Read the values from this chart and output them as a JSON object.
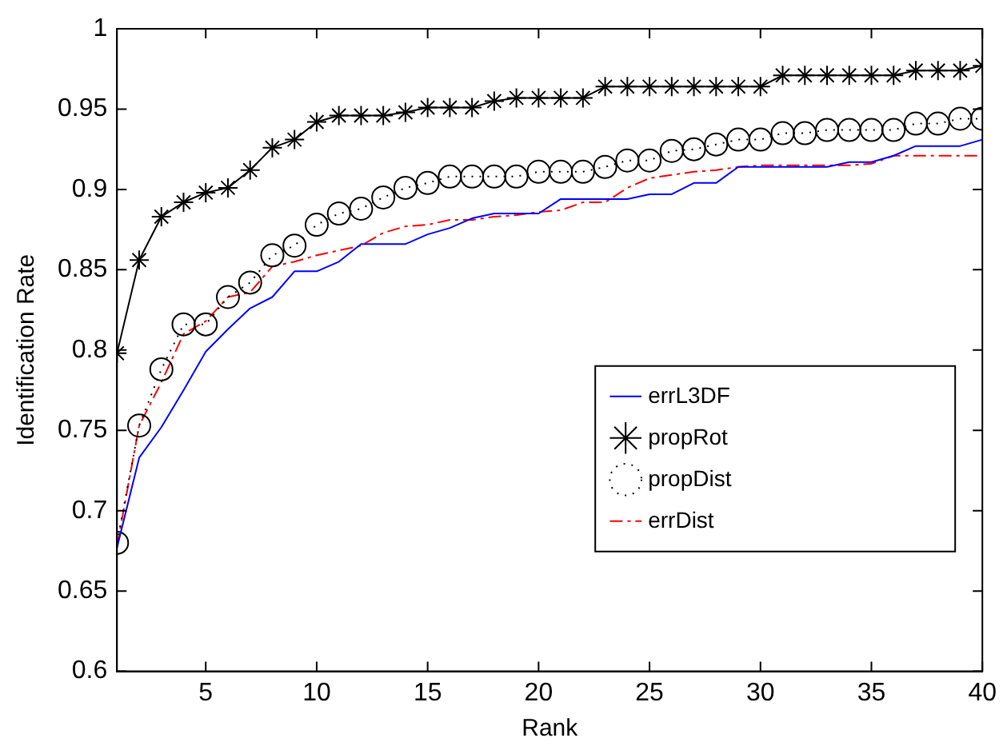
{
  "chart_data": {
    "type": "line",
    "xlabel": "Rank",
    "ylabel": "Identification Rate",
    "x": [
      1,
      2,
      3,
      4,
      5,
      6,
      7,
      8,
      9,
      10,
      11,
      12,
      13,
      14,
      15,
      16,
      17,
      18,
      19,
      20,
      21,
      22,
      23,
      24,
      25,
      26,
      27,
      28,
      29,
      30,
      31,
      32,
      33,
      34,
      35,
      36,
      37,
      38,
      39,
      40
    ],
    "xlim": [
      1,
      40
    ],
    "xticks": [
      5,
      10,
      15,
      20,
      25,
      30,
      35,
      40
    ],
    "ylim": [
      0.6,
      1
    ],
    "yticks": [
      0.6,
      0.65,
      0.7,
      0.75,
      0.8,
      0.85,
      0.9,
      0.95,
      1
    ],
    "grid": false,
    "legend": "right",
    "series": [
      {
        "name": "errL3DF",
        "color": "#0000ff",
        "marker": "none",
        "line_style": "solid",
        "values": [
          0.677,
          0.733,
          0.752,
          0.775,
          0.799,
          0.813,
          0.826,
          0.833,
          0.849,
          0.849,
          0.855,
          0.866,
          0.866,
          0.866,
          0.872,
          0.876,
          0.882,
          0.885,
          0.885,
          0.885,
          0.894,
          0.894,
          0.894,
          0.894,
          0.897,
          0.897,
          0.904,
          0.904,
          0.914,
          0.914,
          0.914,
          0.914,
          0.914,
          0.917,
          0.917,
          0.921,
          0.927,
          0.927,
          0.927,
          0.931
        ]
      },
      {
        "name": "propRot",
        "color": "#000000",
        "marker": "cross",
        "line_style": "solid",
        "values": [
          0.798,
          0.856,
          0.883,
          0.892,
          0.898,
          0.901,
          0.912,
          0.926,
          0.931,
          0.942,
          0.946,
          0.946,
          0.946,
          0.948,
          0.951,
          0.951,
          0.951,
          0.955,
          0.957,
          0.957,
          0.957,
          0.957,
          0.964,
          0.964,
          0.964,
          0.964,
          0.964,
          0.964,
          0.964,
          0.964,
          0.971,
          0.971,
          0.971,
          0.971,
          0.971,
          0.971,
          0.974,
          0.974,
          0.974,
          0.977
        ]
      },
      {
        "name": "propDist",
        "color": "#000000",
        "marker": "circle",
        "line_style": "dotted",
        "values": [
          0.68,
          0.753,
          0.788,
          0.816,
          0.816,
          0.833,
          0.842,
          0.859,
          0.865,
          0.878,
          0.885,
          0.888,
          0.895,
          0.901,
          0.904,
          0.908,
          0.908,
          0.908,
          0.908,
          0.911,
          0.911,
          0.911,
          0.914,
          0.918,
          0.918,
          0.924,
          0.925,
          0.928,
          0.931,
          0.931,
          0.935,
          0.935,
          0.937,
          0.937,
          0.937,
          0.937,
          0.941,
          0.941,
          0.944,
          0.944
        ]
      },
      {
        "name": "errDist",
        "color": "#ff0000",
        "marker": "none",
        "line_style": "dashed",
        "values": [
          0.678,
          0.753,
          0.78,
          0.81,
          0.818,
          0.833,
          0.836,
          0.852,
          0.855,
          0.859,
          0.862,
          0.865,
          0.873,
          0.877,
          0.878,
          0.881,
          0.881,
          0.883,
          0.884,
          0.886,
          0.887,
          0.892,
          0.892,
          0.901,
          0.907,
          0.909,
          0.911,
          0.912,
          0.914,
          0.915,
          0.915,
          0.915,
          0.915,
          0.915,
          0.916,
          0.921,
          0.921,
          0.921,
          0.921,
          0.921
        ]
      }
    ]
  }
}
